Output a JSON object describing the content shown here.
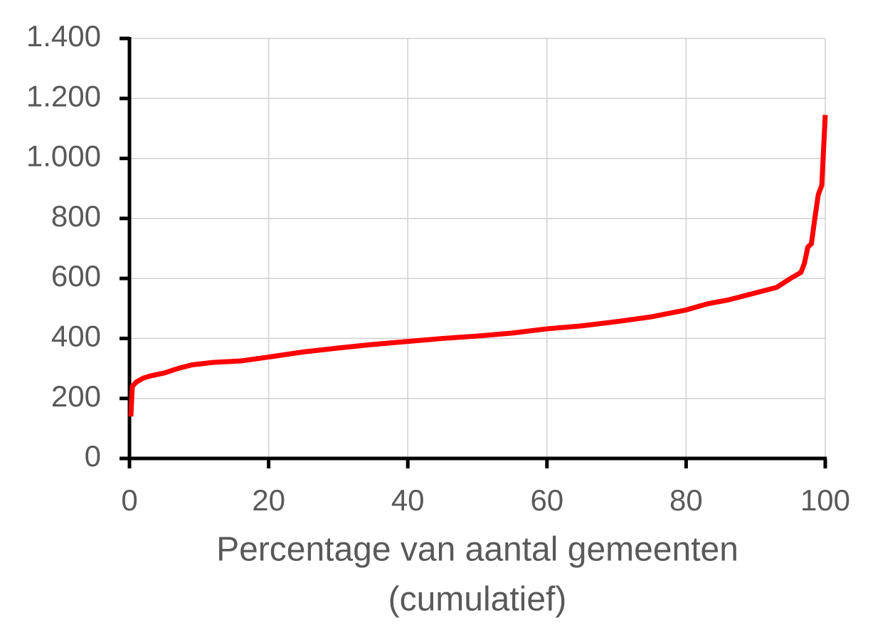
{
  "chart_data": {
    "type": "line",
    "x_label": [
      "Percentage van aantal gemeenten",
      "(cumulatief)"
    ],
    "x": [
      0.2,
      0.4,
      1,
      2,
      3,
      5,
      7,
      9,
      12,
      16,
      20,
      25,
      30,
      35,
      40,
      45,
      50,
      55,
      60,
      65,
      70,
      75,
      80,
      83,
      86,
      90,
      93,
      95,
      96.5,
      97,
      97.5,
      98,
      98.5,
      99,
      99.5,
      100
    ],
    "series": [
      {
        "color": "#ff0000",
        "values": [
          140,
          240,
          255,
          268,
          275,
          285,
          300,
          312,
          320,
          325,
          338,
          355,
          368,
          380,
          390,
          400,
          408,
          418,
          432,
          442,
          456,
          472,
          495,
          515,
          528,
          552,
          570,
          600,
          620,
          650,
          705,
          715,
          800,
          880,
          910,
          1145
        ]
      }
    ],
    "xlim": [
      0,
      100
    ],
    "xticks": [
      0,
      20,
      40,
      60,
      80,
      100
    ],
    "ylim": [
      0,
      1400
    ],
    "yticks": [
      0,
      200,
      400,
      600,
      800,
      {
        "value": 1000,
        "label": "1.000"
      },
      {
        "value": 1200,
        "label": "1.200"
      },
      {
        "value": 1400,
        "label": "1.400"
      }
    ],
    "grid": true
  }
}
